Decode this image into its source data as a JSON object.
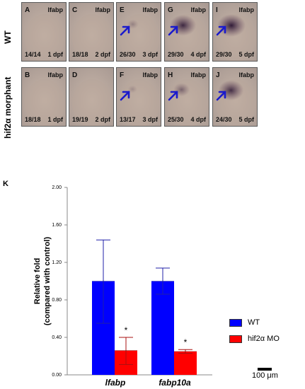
{
  "rows": [
    {
      "label": "WT"
    },
    {
      "label": "hif2α morphant"
    }
  ],
  "panels": [
    {
      "letter": "A",
      "gene": "lfabp",
      "count": "14/14",
      "day": "1 dpf",
      "arrow": false,
      "stain": 0
    },
    {
      "letter": "C",
      "gene": "lfabp",
      "count": "18/18",
      "day": "2 dpf",
      "arrow": false,
      "stain": 0
    },
    {
      "letter": "E",
      "gene": "lfabp",
      "count": "26/30",
      "day": "3 dpf",
      "arrow": true,
      "stain": 0.15
    },
    {
      "letter": "G",
      "gene": "lfabp",
      "count": "29/30",
      "day": "4 dpf",
      "arrow": true,
      "stain": 0.9
    },
    {
      "letter": "I",
      "gene": "lfabp",
      "count": "29/30",
      "day": "5 dpf",
      "arrow": true,
      "stain": 1
    },
    {
      "letter": "B",
      "gene": "lfabp",
      "count": "18/18",
      "day": "1 dpf",
      "arrow": false,
      "stain": 0
    },
    {
      "letter": "D",
      "gene": "",
      "count": "19/19",
      "day": "2 dpf",
      "arrow": false,
      "stain": 0
    },
    {
      "letter": "F",
      "gene": "lfabp",
      "count": "13/17",
      "day": "3 dpf",
      "arrow": true,
      "stain": 0.05
    },
    {
      "letter": "H",
      "gene": "lfabp",
      "count": "25/30",
      "day": "4 dpf",
      "arrow": true,
      "stain": 0.4
    },
    {
      "letter": "J",
      "gene": "lfabp",
      "count": "24/30",
      "day": "5 dpf",
      "arrow": true,
      "stain": 0.85
    }
  ],
  "scale_label": "100 μm",
  "colors": {
    "wt": "#0000ff",
    "mo": "#ff0000",
    "arrow": "#1a1acc"
  },
  "chart_data": {
    "panel_letter": "K",
    "type": "bar",
    "categories": [
      "lfabp",
      "fabp10a"
    ],
    "series": [
      {
        "name": "WT",
        "values": [
          1.0,
          1.0
        ],
        "err_high": [
          1.44,
          1.14
        ],
        "err_low": [
          0.55,
          0.86
        ]
      },
      {
        "name": "hif2α MO",
        "values": [
          0.26,
          0.25
        ],
        "err_high": [
          0.4,
          0.27
        ],
        "err_low": [
          0.11,
          0.23
        ]
      }
    ],
    "significance": [
      "*",
      "*"
    ],
    "ylabel_line1": "Relative fold",
    "ylabel_line2": "(compared with control)",
    "yticks": [
      "0.00",
      "0.40",
      "0.80",
      "1.20",
      "1.60",
      "2.00"
    ],
    "ylim": [
      0,
      2.0
    ],
    "legend_position": "right"
  }
}
